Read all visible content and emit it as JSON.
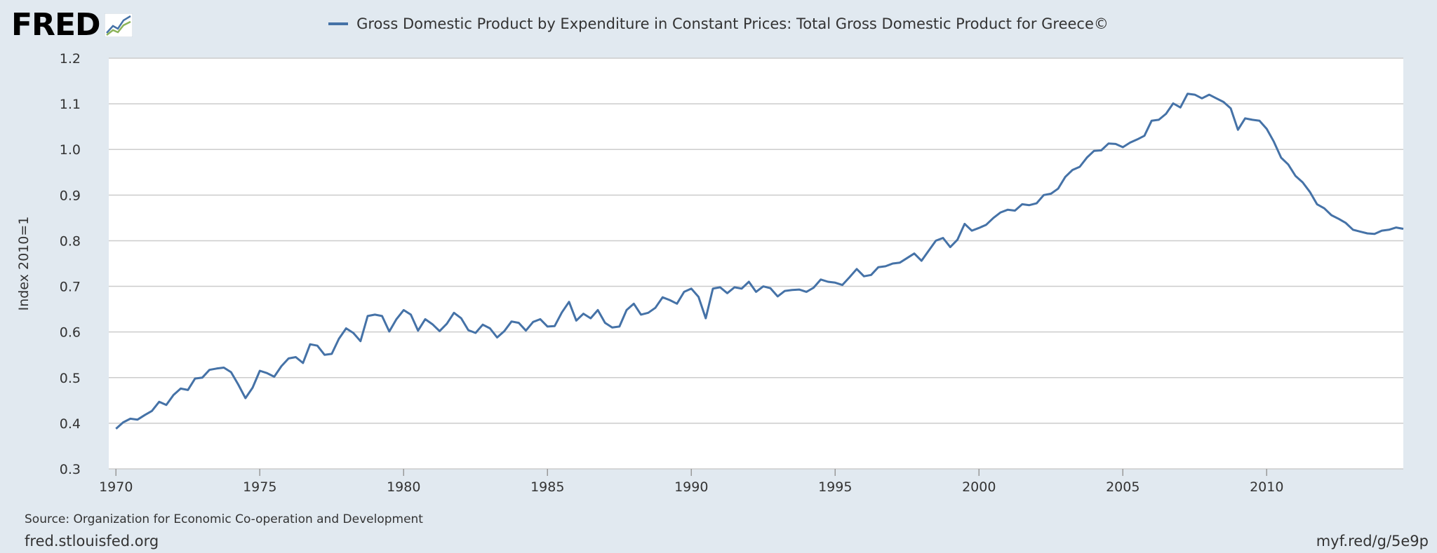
{
  "brand": {
    "logo_text": "FRED",
    "logo_icon": "chart-line-icon"
  },
  "colors": {
    "series": "#4572a7",
    "background": "#e1e9f0",
    "plot": "#ffffff",
    "grid": "#cccccc"
  },
  "footer": {
    "source": "Source: Organization for Economic Co-operation and Development",
    "site": "fred.stlouisfed.org",
    "shortlink": "myf.red/g/5e9p"
  },
  "chart_data": {
    "type": "line",
    "title": "Gross Domestic Product by Expenditure in Constant Prices: Total Gross Domestic Product for Greece©",
    "xlabel": "",
    "ylabel": "Index 2010=1",
    "xlim": [
      1969.75,
      2014.75
    ],
    "ylim": [
      0.3,
      1.2
    ],
    "x_ticks": [
      1970,
      1975,
      1980,
      1985,
      1990,
      1995,
      2000,
      2005,
      2010
    ],
    "y_ticks": [
      0.3,
      0.4,
      0.5,
      0.6,
      0.7,
      0.8,
      0.9,
      1.0,
      1.1,
      1.2
    ],
    "y_tick_labels": [
      "0.3",
      "0.4",
      "0.5",
      "0.6",
      "0.7",
      "0.8",
      "0.9",
      "1.0",
      "1.1",
      "1.2"
    ],
    "grid": true,
    "legend": "top-center",
    "series": [
      {
        "name": "Gross Domestic Product by Expenditure in Constant Prices: Total Gross Domestic Product for Greece©",
        "frequency": "quarterly",
        "start": 1970.0,
        "step": 0.25,
        "values": [
          0.388,
          0.402,
          0.41,
          0.408,
          0.418,
          0.427,
          0.447,
          0.44,
          0.462,
          0.476,
          0.473,
          0.498,
          0.5,
          0.517,
          0.52,
          0.522,
          0.512,
          0.485,
          0.455,
          0.478,
          0.515,
          0.51,
          0.502,
          0.525,
          0.542,
          0.545,
          0.532,
          0.573,
          0.57,
          0.55,
          0.552,
          0.585,
          0.608,
          0.598,
          0.58,
          0.635,
          0.638,
          0.635,
          0.601,
          0.628,
          0.648,
          0.638,
          0.603,
          0.628,
          0.617,
          0.602,
          0.618,
          0.642,
          0.63,
          0.604,
          0.598,
          0.616,
          0.608,
          0.588,
          0.602,
          0.623,
          0.62,
          0.603,
          0.622,
          0.628,
          0.612,
          0.613,
          0.643,
          0.666,
          0.625,
          0.64,
          0.63,
          0.648,
          0.62,
          0.61,
          0.612,
          0.648,
          0.662,
          0.638,
          0.642,
          0.653,
          0.676,
          0.67,
          0.662,
          0.688,
          0.695,
          0.677,
          0.63,
          0.695,
          0.698,
          0.685,
          0.698,
          0.695,
          0.71,
          0.688,
          0.7,
          0.696,
          0.678,
          0.69,
          0.692,
          0.693,
          0.688,
          0.697,
          0.715,
          0.71,
          0.708,
          0.703,
          0.72,
          0.738,
          0.722,
          0.725,
          0.742,
          0.744,
          0.75,
          0.752,
          0.762,
          0.772,
          0.756,
          0.778,
          0.8,
          0.806,
          0.786,
          0.802,
          0.837,
          0.822,
          0.828,
          0.835,
          0.85,
          0.862,
          0.868,
          0.866,
          0.88,
          0.878,
          0.882,
          0.9,
          0.903,
          0.914,
          0.94,
          0.955,
          0.962,
          0.982,
          0.997,
          0.998,
          1.013,
          1.012,
          1.005,
          1.015,
          1.022,
          1.03,
          1.063,
          1.065,
          1.078,
          1.101,
          1.092,
          1.122,
          1.12,
          1.112,
          1.12,
          1.112,
          1.104,
          1.09,
          1.043,
          1.068,
          1.065,
          1.063,
          1.045,
          1.017,
          0.982,
          0.967,
          0.942,
          0.928,
          0.907,
          0.88,
          0.871,
          0.856,
          0.848,
          0.839,
          0.824,
          0.82,
          0.816,
          0.815,
          0.822,
          0.824,
          0.829,
          0.826
        ]
      }
    ]
  }
}
